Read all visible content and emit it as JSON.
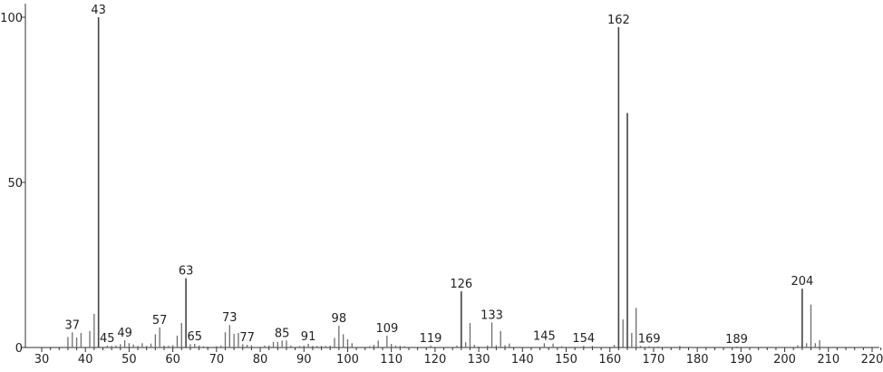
{
  "chart_data": {
    "type": "bar",
    "title": "",
    "xlabel": "",
    "ylabel": "",
    "xlim": [
      28,
      225
    ],
    "ylim": [
      0,
      100
    ],
    "x_ticks": [
      30,
      40,
      50,
      60,
      70,
      80,
      90,
      100,
      110,
      120,
      130,
      140,
      150,
      160,
      170,
      180,
      190,
      200,
      210,
      220
    ],
    "y_ticks": [
      0,
      50,
      100
    ],
    "grid": false,
    "bar_color": "#6e6e6e",
    "peaks": [
      [
        36,
        3.2
      ],
      [
        37,
        4.6
      ],
      [
        38,
        3
      ],
      [
        39,
        4.4
      ],
      [
        41,
        5
      ],
      [
        42,
        10.2
      ],
      [
        43,
        100
      ],
      [
        45,
        0.6
      ],
      [
        46,
        0.5
      ],
      [
        47,
        0.6
      ],
      [
        48,
        1
      ],
      [
        49,
        2.2
      ],
      [
        50,
        1.3
      ],
      [
        51,
        0.9
      ],
      [
        52,
        0.5
      ],
      [
        53,
        1.3
      ],
      [
        54,
        0.5
      ],
      [
        55,
        1.2
      ],
      [
        56,
        4
      ],
      [
        57,
        6.1
      ],
      [
        58,
        0.6
      ],
      [
        59,
        0.5
      ],
      [
        60,
        0.7
      ],
      [
        61,
        3.6
      ],
      [
        62,
        7.4
      ],
      [
        63,
        21
      ],
      [
        64,
        1
      ],
      [
        65,
        1.1
      ],
      [
        66,
        0.6
      ],
      [
        67,
        0.4
      ],
      [
        68,
        0.3
      ],
      [
        70,
        0.4
      ],
      [
        71,
        0.6
      ],
      [
        72,
        4.6
      ],
      [
        73,
        6.8
      ],
      [
        74,
        4.1
      ],
      [
        75,
        4.4
      ],
      [
        76,
        1
      ],
      [
        77,
        0.8
      ],
      [
        78,
        0.7
      ],
      [
        81,
        0.6
      ],
      [
        82,
        0.6
      ],
      [
        83,
        1.7
      ],
      [
        84,
        1.7
      ],
      [
        85,
        2.1
      ],
      [
        86,
        2.1
      ],
      [
        87,
        0.6
      ],
      [
        89,
        0.5
      ],
      [
        90,
        0.6
      ],
      [
        91,
        1.1
      ],
      [
        92,
        0.5
      ],
      [
        93,
        0.5
      ],
      [
        94,
        0.5
      ],
      [
        95,
        0.5
      ],
      [
        96,
        0.6
      ],
      [
        97,
        2.9
      ],
      [
        98,
        6.6
      ],
      [
        99,
        4
      ],
      [
        100,
        2.5
      ],
      [
        101,
        1.3
      ],
      [
        105,
        0.4
      ],
      [
        106,
        0.8
      ],
      [
        107,
        2.1
      ],
      [
        109,
        3.6
      ],
      [
        110,
        1.1
      ],
      [
        111,
        0.6
      ],
      [
        112,
        0.5
      ],
      [
        113,
        0.4
      ],
      [
        119,
        0.6
      ],
      [
        125,
        0.6
      ],
      [
        126,
        17
      ],
      [
        127,
        1.6
      ],
      [
        128,
        7.4
      ],
      [
        129,
        0.8
      ],
      [
        130,
        0.3
      ],
      [
        132,
        0.6
      ],
      [
        133,
        7.6
      ],
      [
        134,
        0.7
      ],
      [
        135,
        5
      ],
      [
        136,
        0.7
      ],
      [
        137,
        1.2
      ],
      [
        145,
        1.3
      ],
      [
        147,
        1.2
      ],
      [
        149,
        0.4
      ],
      [
        154,
        0.5
      ],
      [
        156,
        0.5
      ],
      [
        161,
        0.8
      ],
      [
        162,
        97
      ],
      [
        163,
        8.5
      ],
      [
        164,
        71
      ],
      [
        165,
        4.4
      ],
      [
        166,
        12
      ],
      [
        167,
        0.5
      ],
      [
        169,
        0.4
      ],
      [
        171,
        0.3
      ],
      [
        176,
        0.5
      ],
      [
        189,
        0.3
      ],
      [
        203,
        0.7
      ],
      [
        204,
        17.8
      ],
      [
        205,
        1.3
      ],
      [
        206,
        13
      ],
      [
        207,
        1.3
      ],
      [
        208,
        2.2
      ]
    ],
    "peak_labels": [
      "37",
      "43",
      "45",
      "49",
      "57",
      "63",
      "65",
      "73",
      "77",
      "85",
      "91",
      "98",
      "109",
      "119",
      "126",
      "133",
      "145",
      "154",
      "162",
      "169",
      "189",
      "204"
    ]
  }
}
